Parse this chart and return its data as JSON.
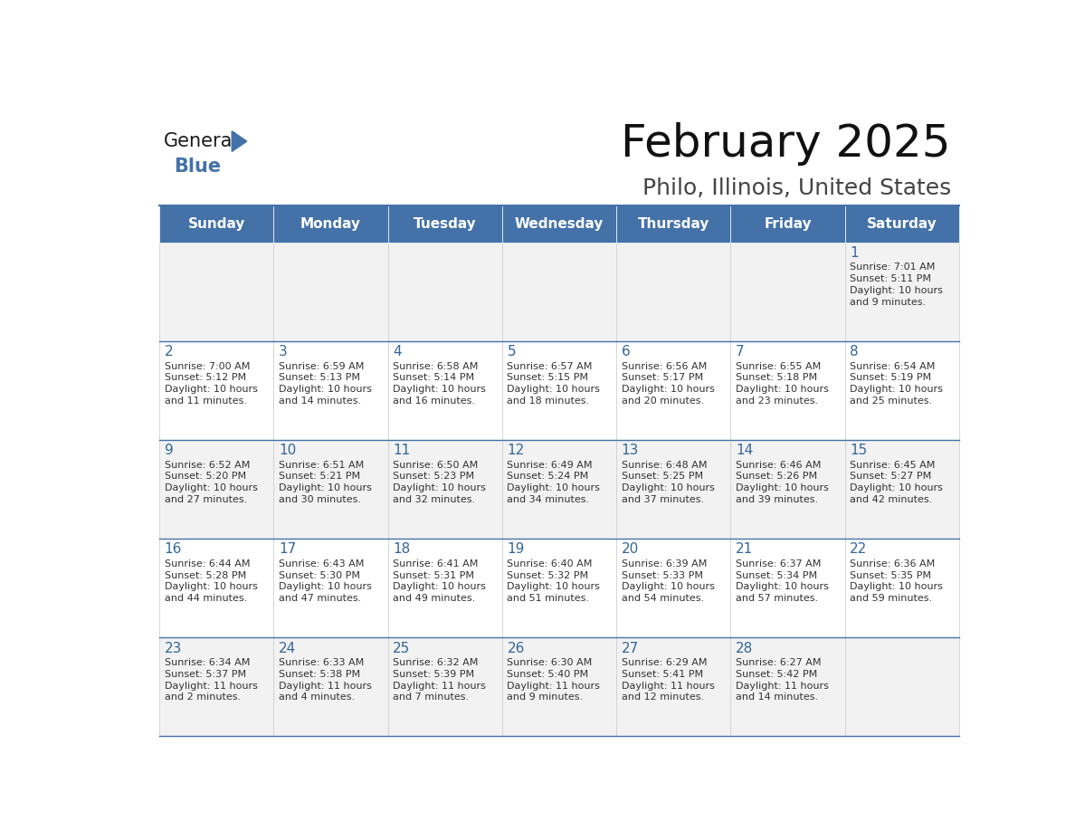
{
  "title": "February 2025",
  "subtitle": "Philo, Illinois, United States",
  "header_bg": "#4472a8",
  "header_text_color": "#ffffff",
  "cell_bg_odd": "#f2f2f2",
  "cell_bg_even": "#ffffff",
  "day_num_color": "#336699",
  "text_color": "#333333",
  "days_of_week": [
    "Sunday",
    "Monday",
    "Tuesday",
    "Wednesday",
    "Thursday",
    "Friday",
    "Saturday"
  ],
  "calendar_data": [
    [
      null,
      null,
      null,
      null,
      null,
      null,
      {
        "day": 1,
        "sunrise": "7:01 AM",
        "sunset": "5:11 PM",
        "daylight": "10 hours\nand 9 minutes."
      }
    ],
    [
      {
        "day": 2,
        "sunrise": "7:00 AM",
        "sunset": "5:12 PM",
        "daylight": "10 hours\nand 11 minutes."
      },
      {
        "day": 3,
        "sunrise": "6:59 AM",
        "sunset": "5:13 PM",
        "daylight": "10 hours\nand 14 minutes."
      },
      {
        "day": 4,
        "sunrise": "6:58 AM",
        "sunset": "5:14 PM",
        "daylight": "10 hours\nand 16 minutes."
      },
      {
        "day": 5,
        "sunrise": "6:57 AM",
        "sunset": "5:15 PM",
        "daylight": "10 hours\nand 18 minutes."
      },
      {
        "day": 6,
        "sunrise": "6:56 AM",
        "sunset": "5:17 PM",
        "daylight": "10 hours\nand 20 minutes."
      },
      {
        "day": 7,
        "sunrise": "6:55 AM",
        "sunset": "5:18 PM",
        "daylight": "10 hours\nand 23 minutes."
      },
      {
        "day": 8,
        "sunrise": "6:54 AM",
        "sunset": "5:19 PM",
        "daylight": "10 hours\nand 25 minutes."
      }
    ],
    [
      {
        "day": 9,
        "sunrise": "6:52 AM",
        "sunset": "5:20 PM",
        "daylight": "10 hours\nand 27 minutes."
      },
      {
        "day": 10,
        "sunrise": "6:51 AM",
        "sunset": "5:21 PM",
        "daylight": "10 hours\nand 30 minutes."
      },
      {
        "day": 11,
        "sunrise": "6:50 AM",
        "sunset": "5:23 PM",
        "daylight": "10 hours\nand 32 minutes."
      },
      {
        "day": 12,
        "sunrise": "6:49 AM",
        "sunset": "5:24 PM",
        "daylight": "10 hours\nand 34 minutes."
      },
      {
        "day": 13,
        "sunrise": "6:48 AM",
        "sunset": "5:25 PM",
        "daylight": "10 hours\nand 37 minutes."
      },
      {
        "day": 14,
        "sunrise": "6:46 AM",
        "sunset": "5:26 PM",
        "daylight": "10 hours\nand 39 minutes."
      },
      {
        "day": 15,
        "sunrise": "6:45 AM",
        "sunset": "5:27 PM",
        "daylight": "10 hours\nand 42 minutes."
      }
    ],
    [
      {
        "day": 16,
        "sunrise": "6:44 AM",
        "sunset": "5:28 PM",
        "daylight": "10 hours\nand 44 minutes."
      },
      {
        "day": 17,
        "sunrise": "6:43 AM",
        "sunset": "5:30 PM",
        "daylight": "10 hours\nand 47 minutes."
      },
      {
        "day": 18,
        "sunrise": "6:41 AM",
        "sunset": "5:31 PM",
        "daylight": "10 hours\nand 49 minutes."
      },
      {
        "day": 19,
        "sunrise": "6:40 AM",
        "sunset": "5:32 PM",
        "daylight": "10 hours\nand 51 minutes."
      },
      {
        "day": 20,
        "sunrise": "6:39 AM",
        "sunset": "5:33 PM",
        "daylight": "10 hours\nand 54 minutes."
      },
      {
        "day": 21,
        "sunrise": "6:37 AM",
        "sunset": "5:34 PM",
        "daylight": "10 hours\nand 57 minutes."
      },
      {
        "day": 22,
        "sunrise": "6:36 AM",
        "sunset": "5:35 PM",
        "daylight": "10 hours\nand 59 minutes."
      }
    ],
    [
      {
        "day": 23,
        "sunrise": "6:34 AM",
        "sunset": "5:37 PM",
        "daylight": "11 hours\nand 2 minutes."
      },
      {
        "day": 24,
        "sunrise": "6:33 AM",
        "sunset": "5:38 PM",
        "daylight": "11 hours\nand 4 minutes."
      },
      {
        "day": 25,
        "sunrise": "6:32 AM",
        "sunset": "5:39 PM",
        "daylight": "11 hours\nand 7 minutes."
      },
      {
        "day": 26,
        "sunrise": "6:30 AM",
        "sunset": "5:40 PM",
        "daylight": "11 hours\nand 9 minutes."
      },
      {
        "day": 27,
        "sunrise": "6:29 AM",
        "sunset": "5:41 PM",
        "daylight": "11 hours\nand 12 minutes."
      },
      {
        "day": 28,
        "sunrise": "6:27 AM",
        "sunset": "5:42 PM",
        "daylight": "11 hours\nand 14 minutes."
      },
      null
    ]
  ],
  "logo_general_color": "#1a1a1a",
  "logo_blue_color": "#4472a8",
  "logo_triangle_color": "#4472a8"
}
